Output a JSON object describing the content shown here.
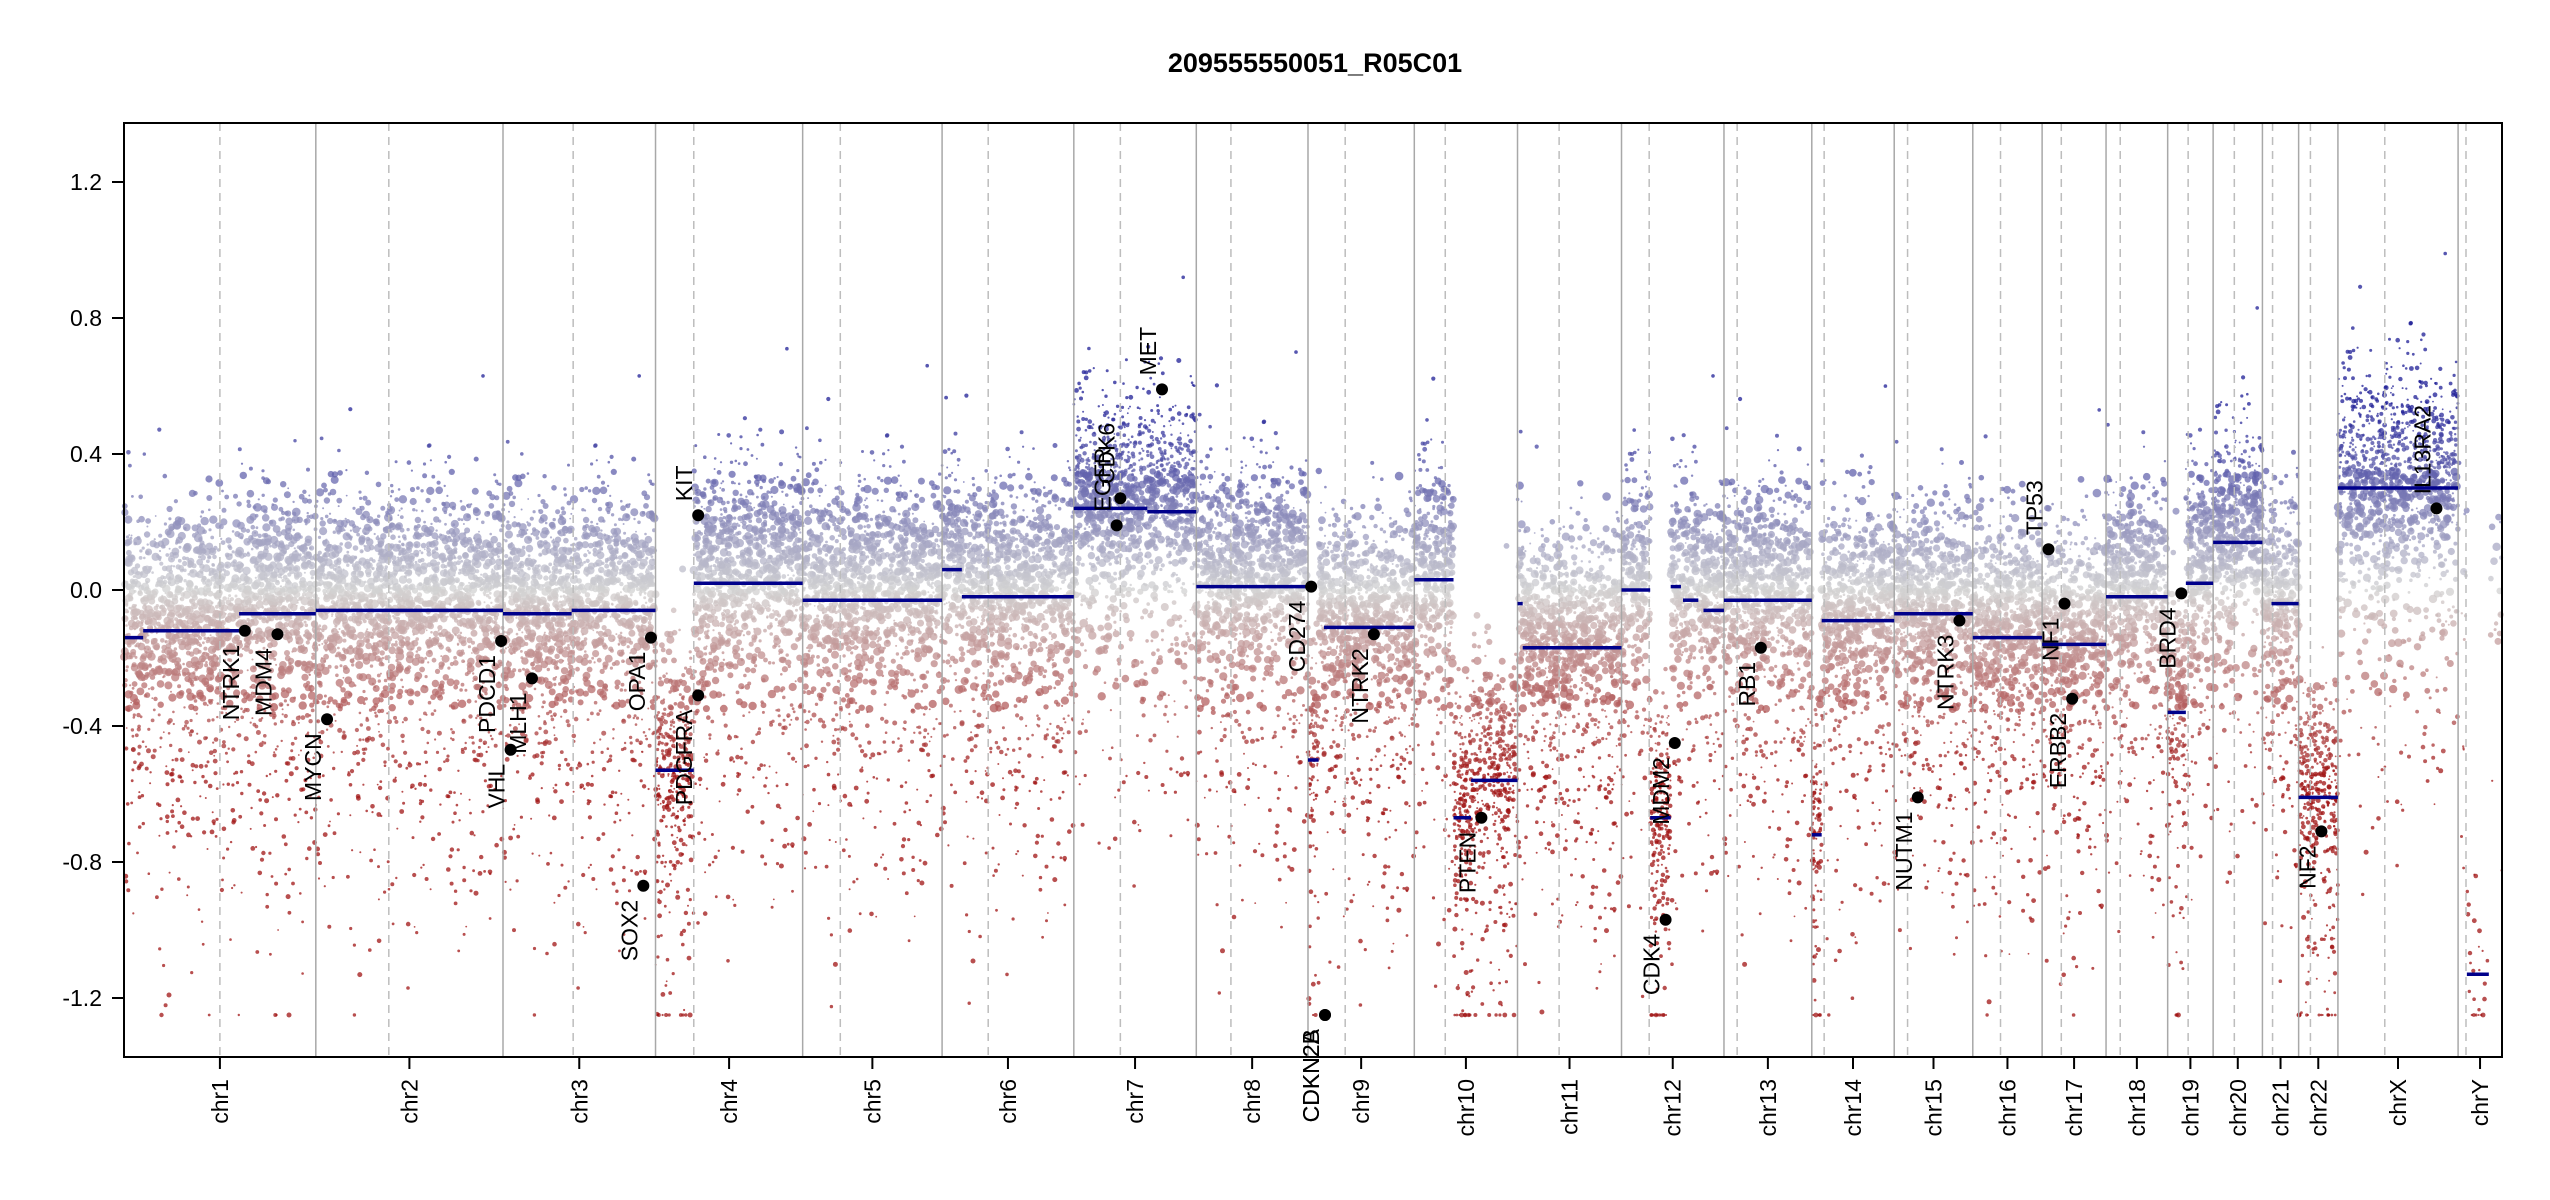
{
  "chart_data": {
    "type": "scatter",
    "title": "209555550051_R05C01",
    "xlabel": "",
    "ylabel": "",
    "ylim": [
      -1.35,
      1.35
    ],
    "yticks": [
      -1.2,
      -0.8,
      -0.4,
      0.0,
      0.4,
      0.8,
      1.2
    ],
    "ytick_labels": [
      "-1.2",
      "-0.8",
      "-0.4",
      "0.0",
      "0.4",
      "0.8",
      "1.2"
    ],
    "chromosomes": [
      {
        "name": "chr1",
        "length": 249,
        "centromere": 0.5
      },
      {
        "name": "chr2",
        "length": 243,
        "centromere": 0.39
      },
      {
        "name": "chr3",
        "length": 198,
        "centromere": 0.46
      },
      {
        "name": "chr4",
        "length": 191,
        "centromere": 0.26
      },
      {
        "name": "chr5",
        "length": 181,
        "centromere": 0.27
      },
      {
        "name": "chr6",
        "length": 171,
        "centromere": 0.35
      },
      {
        "name": "chr7",
        "length": 159,
        "centromere": 0.38
      },
      {
        "name": "chr8",
        "length": 145,
        "centromere": 0.31
      },
      {
        "name": "chr9",
        "length": 138,
        "centromere": 0.35
      },
      {
        "name": "chr10",
        "length": 134,
        "centromere": 0.3
      },
      {
        "name": "chr11",
        "length": 135,
        "centromere": 0.4
      },
      {
        "name": "chr12",
        "length": 133,
        "centromere": 0.27
      },
      {
        "name": "chr13",
        "length": 114,
        "centromere": 0.15
      },
      {
        "name": "chr14",
        "length": 107,
        "centromere": 0.15
      },
      {
        "name": "chr15",
        "length": 102,
        "centromere": 0.17
      },
      {
        "name": "chr16",
        "length": 90,
        "centromere": 0.4
      },
      {
        "name": "chr17",
        "length": 83,
        "centromere": 0.3
      },
      {
        "name": "chr18",
        "length": 80,
        "centromere": 0.23
      },
      {
        "name": "chr19",
        "length": 59,
        "centromere": 0.45
      },
      {
        "name": "chr20",
        "length": 64,
        "centromere": 0.43
      },
      {
        "name": "chr21",
        "length": 47,
        "centromere": 0.28
      },
      {
        "name": "chr22",
        "length": 51,
        "centromere": 0.3
      },
      {
        "name": "chrX",
        "length": 156,
        "centromere": 0.39
      },
      {
        "name": "chrY",
        "length": 57,
        "centromere": 0.18
      }
    ],
    "segments": [
      {
        "chr": "chr1",
        "from": 0.0,
        "to": 0.1,
        "value": -0.14
      },
      {
        "chr": "chr1",
        "from": 0.1,
        "to": 0.6,
        "value": -0.12
      },
      {
        "chr": "chr1",
        "from": 0.6,
        "to": 1.0,
        "value": -0.07
      },
      {
        "chr": "chr2",
        "from": 0.0,
        "to": 1.0,
        "value": -0.06
      },
      {
        "chr": "chr3",
        "from": 0.0,
        "to": 0.45,
        "value": -0.07
      },
      {
        "chr": "chr3",
        "from": 0.45,
        "to": 1.0,
        "value": -0.06
      },
      {
        "chr": "chr4",
        "from": 0.0,
        "to": 0.26,
        "value": -0.53
      },
      {
        "chr": "chr4",
        "from": 0.26,
        "to": 1.0,
        "value": 0.02
      },
      {
        "chr": "chr5",
        "from": 0.0,
        "to": 1.0,
        "value": -0.03
      },
      {
        "chr": "chr6",
        "from": 0.0,
        "to": 0.15,
        "value": 0.06
      },
      {
        "chr": "chr6",
        "from": 0.15,
        "to": 1.0,
        "value": -0.02
      },
      {
        "chr": "chr7",
        "from": 0.0,
        "to": 0.6,
        "value": 0.24
      },
      {
        "chr": "chr7",
        "from": 0.6,
        "to": 1.0,
        "value": 0.23
      },
      {
        "chr": "chr8",
        "from": 0.0,
        "to": 1.0,
        "value": 0.01
      },
      {
        "chr": "chr9",
        "from": 0.0,
        "to": 0.1,
        "value": -0.5
      },
      {
        "chr": "chr9",
        "from": 0.15,
        "to": 1.0,
        "value": -0.11
      },
      {
        "chr": "chr10",
        "from": 0.0,
        "to": 0.38,
        "value": 0.03
      },
      {
        "chr": "chr10",
        "from": 0.38,
        "to": 0.55,
        "value": -0.67
      },
      {
        "chr": "chr10",
        "from": 0.55,
        "to": 1.0,
        "value": -0.56
      },
      {
        "chr": "chr11",
        "from": 0.0,
        "to": 0.05,
        "value": -0.04
      },
      {
        "chr": "chr11",
        "from": 0.05,
        "to": 1.0,
        "value": -0.17
      },
      {
        "chr": "chr12",
        "from": 0.0,
        "to": 0.28,
        "value": 0.0
      },
      {
        "chr": "chr12",
        "from": 0.28,
        "to": 0.48,
        "value": -0.67
      },
      {
        "chr": "chr12",
        "from": 0.48,
        "to": 0.58,
        "value": 0.01
      },
      {
        "chr": "chr12",
        "from": 0.6,
        "to": 0.75,
        "value": -0.03
      },
      {
        "chr": "chr12",
        "from": 0.8,
        "to": 1.0,
        "value": -0.06
      },
      {
        "chr": "chr13",
        "from": 0.0,
        "to": 1.0,
        "value": -0.03
      },
      {
        "chr": "chr14",
        "from": 0.0,
        "to": 0.12,
        "value": -0.72
      },
      {
        "chr": "chr14",
        "from": 0.12,
        "to": 1.0,
        "value": -0.09
      },
      {
        "chr": "chr15",
        "from": 0.0,
        "to": 1.0,
        "value": -0.07
      },
      {
        "chr": "chr16",
        "from": 0.0,
        "to": 1.0,
        "value": -0.14
      },
      {
        "chr": "chr17",
        "from": 0.0,
        "to": 1.0,
        "value": -0.16
      },
      {
        "chr": "chr18",
        "from": 0.0,
        "to": 1.0,
        "value": -0.02
      },
      {
        "chr": "chr19",
        "from": 0.0,
        "to": 0.4,
        "value": -0.36
      },
      {
        "chr": "chr19",
        "from": 0.4,
        "to": 1.0,
        "value": 0.02
      },
      {
        "chr": "chr20",
        "from": 0.0,
        "to": 1.0,
        "value": 0.14
      },
      {
        "chr": "chr21",
        "from": 0.25,
        "to": 1.0,
        "value": -0.04
      },
      {
        "chr": "chr22",
        "from": 0.0,
        "to": 1.0,
        "value": -0.61
      },
      {
        "chr": "chrX",
        "from": 0.0,
        "to": 1.0,
        "value": 0.3
      },
      {
        "chr": "chrY",
        "from": 0.2,
        "to": 0.7,
        "value": -1.13
      }
    ],
    "genes": [
      {
        "name": "NTRK1",
        "chr": "chr1",
        "pos": 0.63,
        "value": -0.12
      },
      {
        "name": "MDM4",
        "chr": "chr1",
        "pos": 0.8,
        "value": -0.13
      },
      {
        "name": "MYCN",
        "chr": "chr2",
        "pos": 0.06,
        "value": -0.38
      },
      {
        "name": "VHL",
        "chr": "chr3",
        "pos": 0.05,
        "value": -0.47
      },
      {
        "name": "PDCD1",
        "chr": "chr2",
        "pos": 0.99,
        "value": -0.15
      },
      {
        "name": "MLH1",
        "chr": "chr3",
        "pos": 0.19,
        "value": -0.26
      },
      {
        "name": "SOX2",
        "chr": "chr3",
        "pos": 0.92,
        "value": -0.87
      },
      {
        "name": "OPA1",
        "chr": "chr3",
        "pos": 0.97,
        "value": -0.14
      },
      {
        "name": "PDGFRA",
        "chr": "chr4",
        "pos": 0.29,
        "value": -0.31
      },
      {
        "name": "KIT",
        "chr": "chr4",
        "pos": 0.29,
        "value": 0.22
      },
      {
        "name": "EGFR",
        "chr": "chr7",
        "pos": 0.35,
        "value": 0.19
      },
      {
        "name": "CDK6",
        "chr": "chr7",
        "pos": 0.38,
        "value": 0.27
      },
      {
        "name": "MET",
        "chr": "chr7",
        "pos": 0.72,
        "value": 0.59
      },
      {
        "name": "CD274",
        "chr": "chr9",
        "pos": 0.03,
        "value": 0.01
      },
      {
        "name": "CDKN2A",
        "chr": "chr9",
        "pos": 0.16,
        "value": -1.25
      },
      {
        "name": "CDKN2B",
        "chr": "chr9",
        "pos": 0.16,
        "value": -1.25
      },
      {
        "name": "NTRK2",
        "chr": "chr9",
        "pos": 0.62,
        "value": -0.13
      },
      {
        "name": "PTEN",
        "chr": "chr10",
        "pos": 0.65,
        "value": -0.67
      },
      {
        "name": "CDK4",
        "chr": "chr12",
        "pos": 0.43,
        "value": -0.97
      },
      {
        "name": "MDM2",
        "chr": "chr12",
        "pos": 0.52,
        "value": -0.45
      },
      {
        "name": "RB1",
        "chr": "chr13",
        "pos": 0.42,
        "value": -0.17
      },
      {
        "name": "NUTM1",
        "chr": "chr15",
        "pos": 0.3,
        "value": -0.61
      },
      {
        "name": "NTRK3",
        "chr": "chr15",
        "pos": 0.83,
        "value": -0.09
      },
      {
        "name": "TP53",
        "chr": "chr17",
        "pos": 0.1,
        "value": 0.12
      },
      {
        "name": "NF1",
        "chr": "chr17",
        "pos": 0.35,
        "value": -0.04
      },
      {
        "name": "ERBB2",
        "chr": "chr17",
        "pos": 0.47,
        "value": -0.32
      },
      {
        "name": "BRD4",
        "chr": "chr19",
        "pos": 0.3,
        "value": -0.01
      },
      {
        "name": "NF2",
        "chr": "chr22",
        "pos": 0.58,
        "value": -0.71
      },
      {
        "name": "IL13RA2",
        "chr": "chrX",
        "pos": 0.82,
        "value": 0.24
      }
    ]
  }
}
